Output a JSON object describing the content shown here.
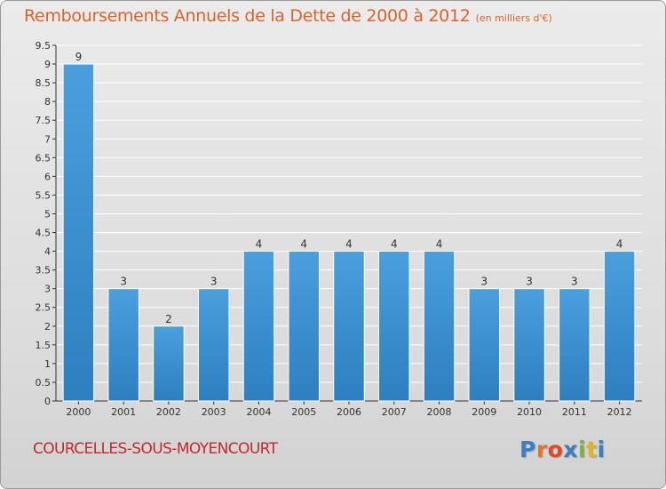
{
  "header": {
    "title": "Remboursements Annuels de la Dette de 2000 à 2012",
    "unit": "(en milliers d'€)"
  },
  "footer": {
    "commune": "COURCELLES-SOUS-MOYENCOURT",
    "logo_text": "Proxiti",
    "logo_colors": [
      "#3a7fc4",
      "#e8742b",
      "#e04a22",
      "#3a7fc4",
      "#7fb23a",
      "#e2b51f",
      "#3a7fc4"
    ]
  },
  "colors": {
    "bar": "#4b9fdd",
    "bar_dark": "#2d7fc0",
    "title": "#d9632a",
    "commune": "#c02a2a",
    "grid": "#ffffff"
  },
  "chart_data": {
    "type": "bar",
    "title": "Remboursements Annuels de la Dette de 2000 à 2012",
    "xlabel": "",
    "ylabel": "",
    "categories": [
      "2000",
      "2001",
      "2002",
      "2003",
      "2004",
      "2005",
      "2006",
      "2007",
      "2008",
      "2009",
      "2010",
      "2011",
      "2012"
    ],
    "values": [
      9,
      3,
      2,
      3,
      4,
      4,
      4,
      4,
      4,
      3,
      3,
      3,
      4
    ],
    "ylim": [
      0,
      9.5
    ],
    "yticks": [
      "0",
      "0.5",
      "1",
      "1.5",
      "2",
      "2.5",
      "3",
      "3.5",
      "4",
      "4.5",
      "5",
      "5.5",
      "6",
      "6.5",
      "7",
      "7.5",
      "8",
      "8.5",
      "9",
      "9.5"
    ],
    "grid": true,
    "data_labels": true
  }
}
